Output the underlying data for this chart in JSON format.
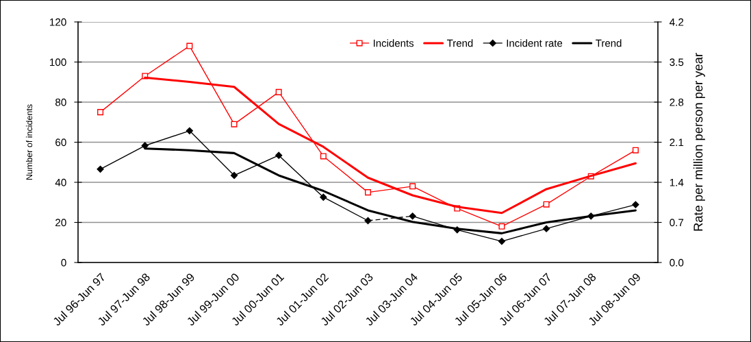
{
  "chart_data": {
    "type": "line",
    "categories": [
      "Jul 96-Jun 97",
      "Jul 97-Jun 98",
      "Jul 98-Jun 99",
      "Jul 99-Jun 00",
      "Jul 00-Jun 01",
      "Jul 01-Jun 02",
      "Jul 02-Jun 03",
      "Jul 03-Jun 04",
      "Jul 04-Jun 05",
      "Jul 05-Jun 06",
      "Jul 06-Jun 07",
      "Jul 07-Jun 08",
      "Jul 08-Jun 09"
    ],
    "series": [
      {
        "name": "Incidents",
        "color": "#ff0000",
        "marker": "square",
        "line_style": "solid",
        "values": [
          75,
          93,
          108,
          69,
          85,
          53,
          35,
          38,
          27,
          18,
          29,
          43,
          56
        ]
      },
      {
        "name": "Trend",
        "color": "#ff0000",
        "marker": "none",
        "line_style": "solid",
        "values": [
          null,
          92.2,
          90.1,
          87.6,
          69.1,
          57.7,
          42.3,
          33.5,
          27.8,
          24.7,
          36.6,
          43.2,
          49.5
        ]
      },
      {
        "name": "Incident rate",
        "color": "#000000",
        "marker": "diamond",
        "line_style": "solid",
        "axis": "y2",
        "values": [
          1.63,
          2.04,
          2.3,
          1.52,
          1.87,
          1.14,
          0.73,
          null,
          null,
          null,
          null,
          null,
          null
        ]
      },
      {
        "name": "Trend",
        "color": "#000000",
        "marker": "none",
        "line_style": "solid",
        "axis": "y2",
        "values": [
          null,
          1.99,
          1.96,
          1.91,
          1.52,
          1.25,
          0.91,
          0.71,
          0.59,
          0.51,
          0.7,
          0.81,
          0.91
        ]
      },
      {
        "color": "#000000",
        "marker": "diamond",
        "line_style": "solid",
        "axis": "y2",
        "values": [
          null,
          null,
          null,
          null,
          null,
          null,
          null,
          0.81,
          0.57,
          0.37,
          0.59,
          0.81,
          1.01
        ]
      },
      {
        "color": "#000000",
        "marker": "none",
        "line_style": "dashed",
        "axis": "y2",
        "values": [
          null,
          null,
          null,
          null,
          null,
          null,
          0.73,
          0.81,
          null,
          null,
          null,
          null,
          null
        ]
      }
    ],
    "ylabel": "Number of incidents",
    "y2label": "Rate per million person per year",
    "ylim": [
      0,
      120
    ],
    "yticks": [
      0,
      20,
      40,
      60,
      80,
      100,
      120
    ],
    "y2lim": [
      0.0,
      4.2
    ],
    "y2ticks": [
      {
        "value": 0.0,
        "label": "0.0"
      },
      0.7,
      1.4,
      2.1,
      2.8,
      3.5,
      4.2
    ],
    "grid": "y",
    "legend": "top right"
  }
}
